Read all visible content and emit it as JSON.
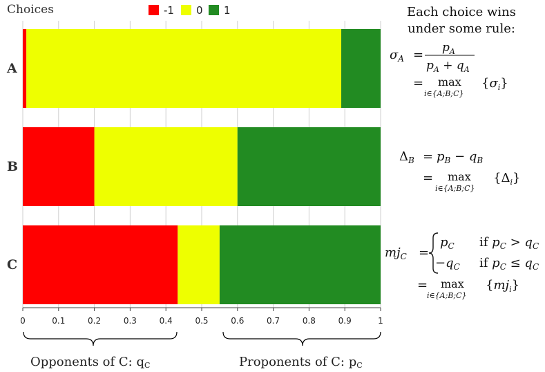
{
  "chart_data": {
    "type": "bar",
    "orientation": "horizontal",
    "stacked": true,
    "title": "",
    "categories": [
      "A",
      "B",
      "C"
    ],
    "series": [
      {
        "name": "-1",
        "color": "#ff0000",
        "values": [
          0.01,
          0.2,
          0.433
        ]
      },
      {
        "name": "0",
        "color": "#eeff00",
        "values": [
          0.88,
          0.4,
          0.117
        ]
      },
      {
        "name": "1",
        "color": "#228b22",
        "values": [
          0.11,
          0.4,
          0.45
        ]
      }
    ],
    "xlim": [
      0,
      1
    ],
    "x_ticks": [
      "0",
      "0.1",
      "0.2",
      "0.3",
      "0.4",
      "0.5",
      "0.6",
      "0.7",
      "0.8",
      "0.9",
      "1"
    ],
    "legend": {
      "title": "Choices",
      "position": "top"
    },
    "grid": true
  },
  "annotations": {
    "left_brace_label": "Opponents of C: q",
    "left_brace_sub": "C",
    "right_brace_label": "Proponents of C: p",
    "right_brace_sub": "C"
  },
  "side_panel": {
    "heading_line1": "Each choice wins",
    "heading_line2": "under some rule:",
    "sigma": {
      "lhs": "σ",
      "lhs_sub": "A",
      "num": "p",
      "num_sub": "A",
      "den_p": "p",
      "den_p_sub": "A",
      "den_plus": " + ",
      "den_q": "q",
      "den_q_sub": "A",
      "max_word": "max",
      "max_under": "i∈{A;B;C}",
      "max_arg": "σ",
      "max_arg_sub": "i"
    },
    "delta": {
      "lhs": "Δ",
      "lhs_sub": "B",
      "rhs_p": "p",
      "rhs_p_sub": "B",
      "minus": " − ",
      "rhs_q": "q",
      "rhs_q_sub": "B",
      "max_word": "max",
      "max_under": "i∈{A;B;C}",
      "max_arg": "Δ",
      "max_arg_sub": "i"
    },
    "mj": {
      "lhs": "mj",
      "lhs_sub": "C",
      "case1_val": "p",
      "case1_val_sub": "C",
      "case1_cond": "if",
      "case1_rel": " > ",
      "case2_val": "−q",
      "case2_val_sub": "C",
      "case2_cond": "if",
      "case2_rel": " ≤ ",
      "cond_p": "p",
      "cond_q": "q",
      "cond_sub": "C",
      "max_word": "max",
      "max_under": "i∈{A;B;C}",
      "max_arg": "mj",
      "max_arg_sub": "i"
    }
  },
  "equals": "="
}
